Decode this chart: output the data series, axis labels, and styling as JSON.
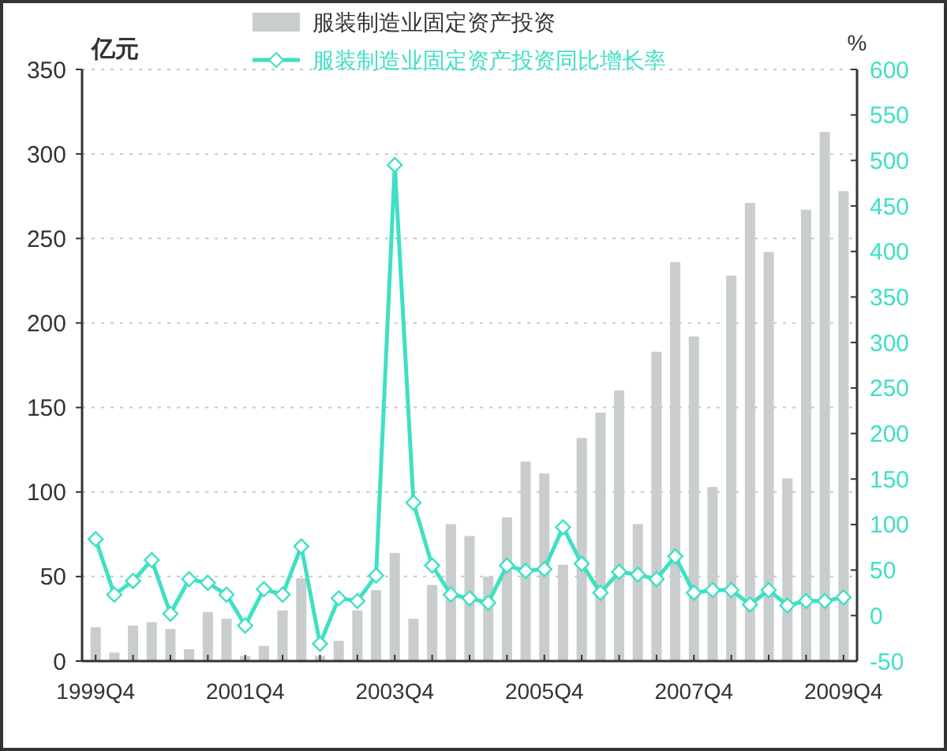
{
  "chart_data": {
    "type": "bar",
    "ylabel": "亿元",
    "y2label": "%",
    "categories": [
      "1999Q4",
      null,
      null,
      null,
      null,
      null,
      null,
      null,
      "2001Q4",
      null,
      null,
      null,
      null,
      null,
      null,
      null,
      "2003Q4",
      null,
      null,
      null,
      null,
      null,
      null,
      null,
      "2005Q4",
      null,
      null,
      null,
      null,
      null,
      null,
      null,
      "2007Q4",
      null,
      null,
      null,
      null,
      null,
      null,
      null,
      "2009Q4"
    ],
    "series": [
      {
        "name": "服装制造业固定资产投资",
        "color": "#c9cdcd",
        "values": [
          20,
          5,
          21,
          23,
          19,
          7,
          29,
          25,
          3,
          9,
          30,
          49,
          3,
          12,
          30,
          42,
          64,
          25,
          45,
          81,
          74,
          50,
          85,
          118,
          111,
          57,
          132,
          147,
          160,
          81,
          183,
          236,
          192,
          103,
          228,
          271,
          242,
          108,
          267,
          313,
          278
        ]
      },
      {
        "name": "服装制造业固定资产投资同比增长率",
        "type": "line",
        "axis": "y2",
        "color": "#3fe0c4",
        "marker": "diamond",
        "values": [
          84,
          23,
          38,
          61,
          2,
          40,
          36,
          23,
          -11,
          29,
          23,
          76,
          -31,
          19,
          16,
          44,
          495,
          124,
          55,
          23,
          19,
          14,
          55,
          49,
          51,
          97,
          57,
          25,
          48,
          45,
          40,
          65,
          25,
          28,
          28,
          12,
          28,
          11,
          16,
          16,
          20
        ]
      }
    ],
    "ylim": [
      0,
      350
    ],
    "yticks": [
      0,
      50,
      100,
      150,
      200,
      250,
      300,
      350
    ],
    "y2lim": [
      -50,
      600
    ],
    "y2ticks": [
      -50,
      0,
      50,
      100,
      150,
      200,
      250,
      300,
      350,
      400,
      450,
      500,
      550,
      600
    ],
    "grid": "y",
    "legend": "top"
  }
}
